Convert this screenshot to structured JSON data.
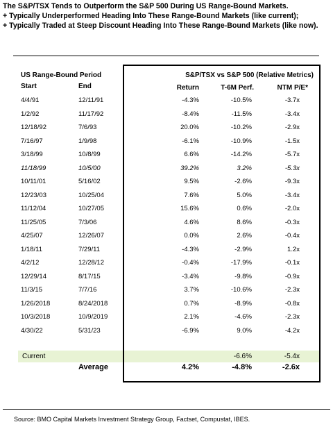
{
  "header": {
    "lines": [
      "The S&P/TSX Tends to Outperform the S&P 500 During US Range-Bound Markets.",
      "+ Typically Underperformed Heading Into These Range-Bound Markets (like current);",
      "+ Typically Traded at Steep Discount Heading Into These Range-Bound Markets (like now)."
    ]
  },
  "table": {
    "group_left": "US Range-Bound Period",
    "group_right": "S&P/TSX vs S&P 500 (Relative Metrics)",
    "columns": {
      "start": "Start",
      "end": "End",
      "return": "Return",
      "perf": "T-6M Perf.",
      "pe": "NTM P/E*"
    },
    "rows": [
      {
        "start": "4/4/91",
        "end": "12/11/91",
        "ret": "-4.3%",
        "perf": "-10.5%",
        "pe": "-3.7x"
      },
      {
        "start": "1/2/92",
        "end": "11/17/92",
        "ret": "-8.4%",
        "perf": "-11.5%",
        "pe": "-3.4x"
      },
      {
        "start": "12/18/92",
        "end": "7/6/93",
        "ret": "20.0%",
        "perf": "-10.2%",
        "pe": "-2.9x"
      },
      {
        "start": "7/16/97",
        "end": "1/9/98",
        "ret": "-6.1%",
        "perf": "-10.9%",
        "pe": "-1.5x"
      },
      {
        "start": "3/18/99",
        "end": "10/8/99",
        "ret": "6.6%",
        "perf": "-14.2%",
        "pe": "-5.7x"
      },
      {
        "start": "11/18/99",
        "end": "10/5/00",
        "ret": "39.2%",
        "perf": "3.2%",
        "pe": "-5.3x",
        "italic": true
      },
      {
        "start": "10/11/01",
        "end": "5/16/02",
        "ret": "9.5%",
        "perf": "-2.6%",
        "pe": "-9.3x"
      },
      {
        "start": "12/23/03",
        "end": "10/25/04",
        "ret": "7.6%",
        "perf": "5.0%",
        "pe": "-3.4x"
      },
      {
        "start": "11/12/04",
        "end": "10/27/05",
        "ret": "15.6%",
        "perf": "0.6%",
        "pe": "-2.0x"
      },
      {
        "start": "11/25/05",
        "end": "7/3/06",
        "ret": "4.6%",
        "perf": "8.6%",
        "pe": "-0.3x"
      },
      {
        "start": "4/25/07",
        "end": "12/26/07",
        "ret": "0.0%",
        "perf": "2.6%",
        "pe": "-0.4x"
      },
      {
        "start": "1/18/11",
        "end": "7/29/11",
        "ret": "-4.3%",
        "perf": "-2.9%",
        "pe": "1.2x"
      },
      {
        "start": "4/2/12",
        "end": "12/28/12",
        "ret": "-0.4%",
        "perf": "-17.9%",
        "pe": "-0.1x"
      },
      {
        "start": "12/29/14",
        "end": "8/17/15",
        "ret": "-3.4%",
        "perf": "-9.8%",
        "pe": "-0.9x"
      },
      {
        "start": "11/3/15",
        "end": "7/7/16",
        "ret": "3.7%",
        "perf": "-10.6%",
        "pe": "-2.3x"
      },
      {
        "start": "1/26/2018",
        "end": "8/24/2018",
        "ret": "0.7%",
        "perf": "-8.9%",
        "pe": "-0.8x"
      },
      {
        "start": "10/3/2018",
        "end": "10/9/2019",
        "ret": "2.1%",
        "perf": "-4.6%",
        "pe": "-2.3x"
      },
      {
        "start": "4/30/22",
        "end": "5/31/23",
        "ret": "-6.9%",
        "perf": "9.0%",
        "pe": "-4.2x"
      }
    ],
    "current": {
      "label": "Current",
      "perf": "-6.6%",
      "pe": "-5.4x"
    },
    "average": {
      "label": "Average",
      "ret": "4.2%",
      "perf": "-4.8%",
      "pe": "-2.6x"
    }
  },
  "source": "Source: BMO Capital Markets Investment Strategy Group, Factset, Compustat, IBES.",
  "colors": {
    "current_band": "#e8f3d4"
  }
}
